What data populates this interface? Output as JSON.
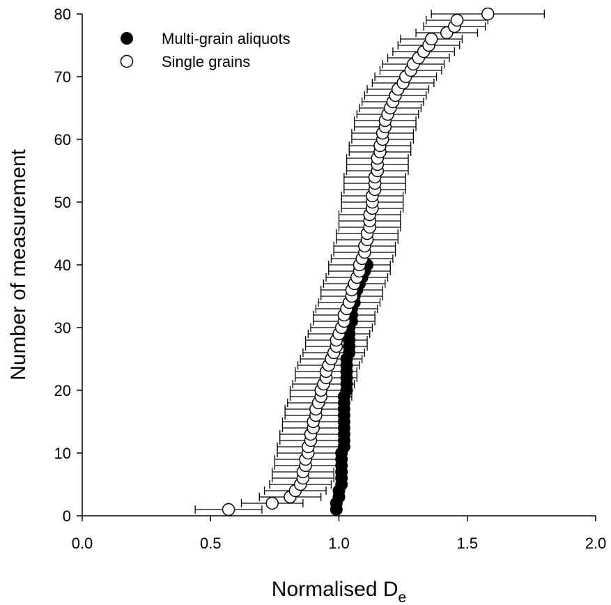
{
  "chart_data": {
    "type": "scatter",
    "title": "",
    "xlabel": "Normalised D",
    "xlabel_subscript": "e",
    "ylabel": "Number of measurement",
    "xlim": [
      0.0,
      2.0
    ],
    "ylim": [
      0,
      80
    ],
    "x_ticks": [
      "0.0",
      "0.5",
      "1.0",
      "1.5",
      "2.0"
    ],
    "y_ticks": [
      "0",
      "10",
      "20",
      "30",
      "40",
      "50",
      "60",
      "70",
      "80"
    ],
    "grid": false,
    "legend_position": "top-left",
    "series": [
      {
        "name": "Multi-grain aliquots",
        "marker": "filled-circle",
        "color": "#000000",
        "points": [
          [
            0.99,
            1
          ],
          [
            0.99,
            2
          ],
          [
            1.0,
            3
          ],
          [
            1.0,
            4
          ],
          [
            1.01,
            5
          ],
          [
            1.01,
            6
          ],
          [
            1.01,
            7
          ],
          [
            1.01,
            8
          ],
          [
            1.01,
            9
          ],
          [
            1.01,
            10
          ],
          [
            1.02,
            11
          ],
          [
            1.02,
            12
          ],
          [
            1.02,
            13
          ],
          [
            1.02,
            14
          ],
          [
            1.02,
            15
          ],
          [
            1.02,
            16
          ],
          [
            1.02,
            17
          ],
          [
            1.02,
            18
          ],
          [
            1.02,
            19
          ],
          [
            1.03,
            20
          ],
          [
            1.03,
            21
          ],
          [
            1.03,
            22
          ],
          [
            1.03,
            23
          ],
          [
            1.03,
            24
          ],
          [
            1.03,
            25
          ],
          [
            1.04,
            26
          ],
          [
            1.04,
            27
          ],
          [
            1.04,
            28
          ],
          [
            1.04,
            29
          ],
          [
            1.04,
            30
          ],
          [
            1.05,
            31
          ],
          [
            1.05,
            32
          ],
          [
            1.05,
            33
          ],
          [
            1.06,
            34
          ],
          [
            1.06,
            35
          ],
          [
            1.07,
            36
          ],
          [
            1.08,
            37
          ],
          [
            1.09,
            38
          ],
          [
            1.1,
            39
          ],
          [
            1.11,
            40
          ]
        ]
      },
      {
        "name": "Single grains",
        "marker": "open-circle",
        "color": "#000000",
        "points": [
          [
            0.57,
            1,
            0.13
          ],
          [
            0.74,
            2,
            0.12
          ],
          [
            0.81,
            3,
            0.12
          ],
          [
            0.83,
            4,
            0.12
          ],
          [
            0.85,
            5,
            0.12
          ],
          [
            0.86,
            6,
            0.12
          ],
          [
            0.86,
            7,
            0.12
          ],
          [
            0.87,
            8,
            0.12
          ],
          [
            0.87,
            9,
            0.12
          ],
          [
            0.88,
            10,
            0.12
          ],
          [
            0.88,
            11,
            0.12
          ],
          [
            0.89,
            12,
            0.12
          ],
          [
            0.89,
            13,
            0.12
          ],
          [
            0.9,
            14,
            0.12
          ],
          [
            0.9,
            15,
            0.12
          ],
          [
            0.91,
            16,
            0.12
          ],
          [
            0.91,
            17,
            0.12
          ],
          [
            0.92,
            18,
            0.12
          ],
          [
            0.93,
            19,
            0.12
          ],
          [
            0.93,
            20,
            0.12
          ],
          [
            0.94,
            21,
            0.12
          ],
          [
            0.95,
            22,
            0.12
          ],
          [
            0.95,
            23,
            0.12
          ],
          [
            0.96,
            24,
            0.12
          ],
          [
            0.97,
            25,
            0.12
          ],
          [
            0.98,
            26,
            0.12
          ],
          [
            0.99,
            27,
            0.12
          ],
          [
            0.99,
            28,
            0.12
          ],
          [
            1.0,
            29,
            0.12
          ],
          [
            1.01,
            30,
            0.12
          ],
          [
            1.02,
            31,
            0.12
          ],
          [
            1.02,
            32,
            0.12
          ],
          [
            1.03,
            33,
            0.12
          ],
          [
            1.04,
            34,
            0.12
          ],
          [
            1.05,
            35,
            0.12
          ],
          [
            1.05,
            36,
            0.12
          ],
          [
            1.06,
            37,
            0.12
          ],
          [
            1.07,
            38,
            0.12
          ],
          [
            1.08,
            39,
            0.12
          ],
          [
            1.08,
            40,
            0.12
          ],
          [
            1.09,
            41,
            0.12
          ],
          [
            1.1,
            42,
            0.12
          ],
          [
            1.1,
            43,
            0.12
          ],
          [
            1.11,
            44,
            0.12
          ],
          [
            1.11,
            45,
            0.12
          ],
          [
            1.12,
            46,
            0.12
          ],
          [
            1.12,
            47,
            0.12
          ],
          [
            1.12,
            48,
            0.12
          ],
          [
            1.13,
            49,
            0.12
          ],
          [
            1.13,
            50,
            0.12
          ],
          [
            1.13,
            51,
            0.12
          ],
          [
            1.14,
            52,
            0.12
          ],
          [
            1.14,
            53,
            0.12
          ],
          [
            1.14,
            54,
            0.12
          ],
          [
            1.15,
            55,
            0.12
          ],
          [
            1.15,
            56,
            0.12
          ],
          [
            1.15,
            57,
            0.12
          ],
          [
            1.16,
            58,
            0.12
          ],
          [
            1.16,
            59,
            0.12
          ],
          [
            1.17,
            60,
            0.12
          ],
          [
            1.17,
            61,
            0.12
          ],
          [
            1.18,
            62,
            0.12
          ],
          [
            1.18,
            63,
            0.12
          ],
          [
            1.19,
            64,
            0.12
          ],
          [
            1.2,
            65,
            0.12
          ],
          [
            1.21,
            66,
            0.12
          ],
          [
            1.22,
            67,
            0.12
          ],
          [
            1.23,
            68,
            0.12
          ],
          [
            1.25,
            69,
            0.12
          ],
          [
            1.26,
            70,
            0.12
          ],
          [
            1.28,
            71,
            0.12
          ],
          [
            1.29,
            72,
            0.12
          ],
          [
            1.31,
            73,
            0.12
          ],
          [
            1.33,
            74,
            0.12
          ],
          [
            1.35,
            75,
            0.12
          ],
          [
            1.36,
            76,
            0.12
          ],
          [
            1.42,
            77,
            0.12
          ],
          [
            1.45,
            78,
            0.12
          ],
          [
            1.46,
            79,
            0.12
          ],
          [
            1.58,
            80,
            0.22
          ]
        ]
      }
    ]
  }
}
